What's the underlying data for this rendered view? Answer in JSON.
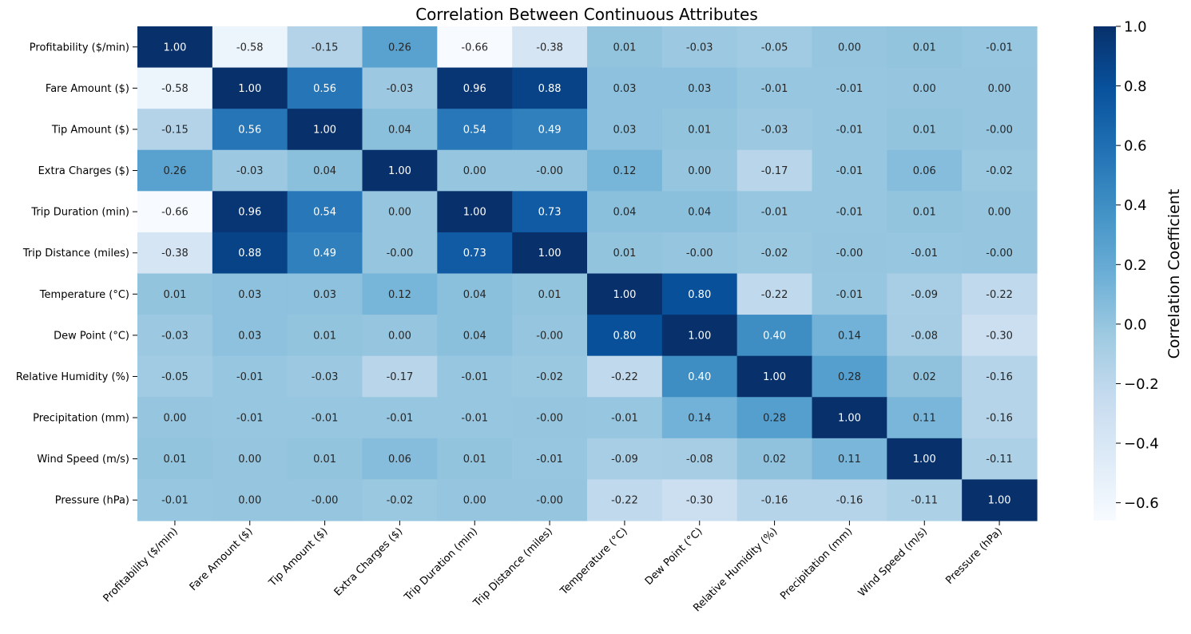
{
  "chart_data": {
    "type": "heatmap",
    "title": "Correlation Between Continuous Attributes",
    "row_labels": [
      "Profitability ($/min)",
      "Fare Amount ($)",
      "Tip Amount ($)",
      "Extra Charges ($)",
      "Trip Duration (min)",
      "Trip Distance (miles)",
      "Temperature (°C)",
      "Dew Point (°C)",
      "Relative Humidity (%)",
      "Precipitation (mm)",
      "Wind Speed (m/s)",
      "Pressure (hPa)"
    ],
    "col_labels": [
      "Profitability ($/min)",
      "Fare Amount ($)",
      "Tip Amount ($)",
      "Extra Charges ($)",
      "Trip Duration (min)",
      "Trip Distance (miles)",
      "Temperature (°C)",
      "Dew Point (°C)",
      "Relative Humidity (%)",
      "Precipitation (mm)",
      "Wind Speed (m/s)",
      "Pressure (hPa)"
    ],
    "cell_labels": [
      [
        "1.00",
        "-0.58",
        "-0.15",
        "0.26",
        "-0.66",
        "-0.38",
        "0.01",
        "-0.03",
        "-0.05",
        "0.00",
        "0.01",
        "-0.01"
      ],
      [
        "-0.58",
        "1.00",
        "0.56",
        "-0.03",
        "0.96",
        "0.88",
        "0.03",
        "0.03",
        "-0.01",
        "-0.01",
        "0.00",
        "0.00"
      ],
      [
        "-0.15",
        "0.56",
        "1.00",
        "0.04",
        "0.54",
        "0.49",
        "0.03",
        "0.01",
        "-0.03",
        "-0.01",
        "0.01",
        "-0.00"
      ],
      [
        "0.26",
        "-0.03",
        "0.04",
        "1.00",
        "0.00",
        "-0.00",
        "0.12",
        "0.00",
        "-0.17",
        "-0.01",
        "0.06",
        "-0.02"
      ],
      [
        "-0.66",
        "0.96",
        "0.54",
        "0.00",
        "1.00",
        "0.73",
        "0.04",
        "0.04",
        "-0.01",
        "-0.01",
        "0.01",
        "0.00"
      ],
      [
        "-0.38",
        "0.88",
        "0.49",
        "-0.00",
        "0.73",
        "1.00",
        "0.01",
        "-0.00",
        "-0.02",
        "-0.00",
        "-0.01",
        "-0.00"
      ],
      [
        "0.01",
        "0.03",
        "0.03",
        "0.12",
        "0.04",
        "0.01",
        "1.00",
        "0.80",
        "-0.22",
        "-0.01",
        "-0.09",
        "-0.22"
      ],
      [
        "-0.03",
        "0.03",
        "0.01",
        "0.00",
        "0.04",
        "-0.00",
        "0.80",
        "1.00",
        "0.40",
        "0.14",
        "-0.08",
        "-0.30"
      ],
      [
        "-0.05",
        "-0.01",
        "-0.03",
        "-0.17",
        "-0.01",
        "-0.02",
        "-0.22",
        "0.40",
        "1.00",
        "0.28",
        "0.02",
        "-0.16"
      ],
      [
        "0.00",
        "-0.01",
        "-0.01",
        "-0.01",
        "-0.01",
        "-0.00",
        "-0.01",
        "0.14",
        "0.28",
        "1.00",
        "0.11",
        "-0.16"
      ],
      [
        "0.01",
        "0.00",
        "0.01",
        "0.06",
        "0.01",
        "-0.01",
        "-0.09",
        "-0.08",
        "0.02",
        "0.11",
        "1.00",
        "-0.11"
      ],
      [
        "-0.01",
        "0.00",
        "-0.00",
        "-0.02",
        "0.00",
        "-0.00",
        "-0.22",
        "-0.30",
        "-0.16",
        "-0.16",
        "-0.11",
        "1.00"
      ]
    ],
    "colorbar": {
      "label": "Correlation Coefficient",
      "range": [
        -0.66,
        1.0
      ],
      "ticks": [
        1.0,
        0.8,
        0.6,
        0.4,
        0.2,
        0.0,
        -0.2,
        -0.4,
        -0.6
      ],
      "tick_labels": [
        "1.0",
        "0.8",
        "0.6",
        "0.4",
        "0.2",
        "0.0",
        "−0.2",
        "−0.4",
        "−0.6"
      ],
      "colormap": "Blues",
      "colors": [
        "#f7fbff",
        "#deebf7",
        "#c6dbef",
        "#9ecae1",
        "#6baed6",
        "#4292c6",
        "#2171b5",
        "#08519c",
        "#08306b"
      ]
    },
    "grid": false
  }
}
